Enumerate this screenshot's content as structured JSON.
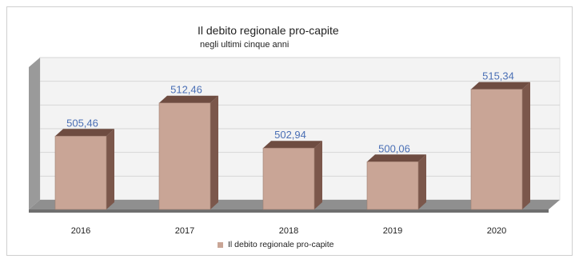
{
  "chart_data": {
    "type": "bar",
    "title": "Il debito regionale pro-capite",
    "subtitle": "negli ultimi cinque anni",
    "categories": [
      "2016",
      "2017",
      "2018",
      "2019",
      "2020"
    ],
    "series": [
      {
        "name": "Il debito regionale pro-capite",
        "values": [
          505.46,
          512.46,
          502.94,
          500.06,
          515.34
        ]
      }
    ],
    "value_labels": [
      "505,46",
      "512,46",
      "502,94",
      "500,06",
      "515,34"
    ],
    "ylim": [
      490,
      520
    ],
    "grid": true,
    "legend_position": "bottom",
    "colors": {
      "bar_front": "#c9a596",
      "bar_side": "#7b574b",
      "bar_top": "#6e4c41",
      "label": "#4a6fb5",
      "wall": "#f4f4f4",
      "floor": "#8c8c8c"
    }
  }
}
